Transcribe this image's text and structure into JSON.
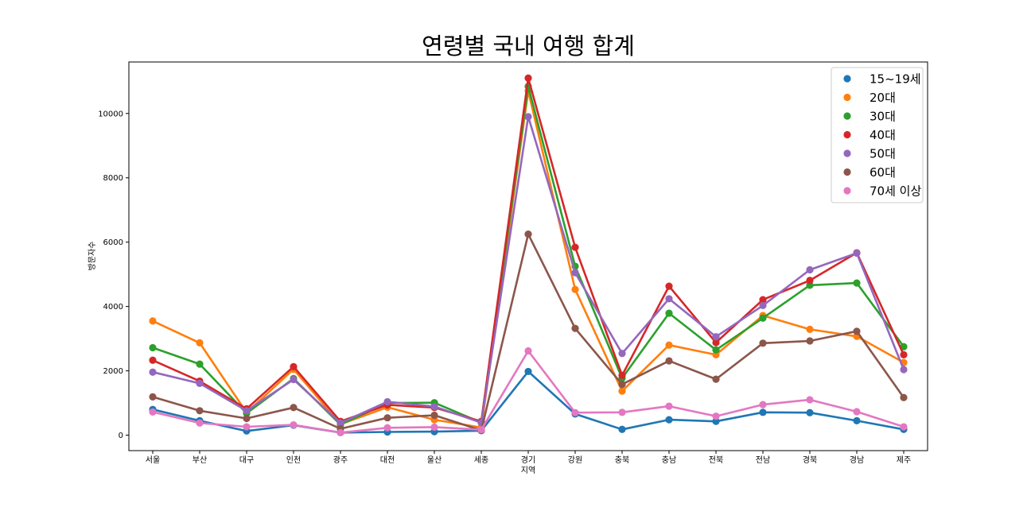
{
  "chart_data": {
    "type": "line",
    "title": "연령별 국내 여행 합계",
    "xlabel": "지역",
    "ylabel": "방문자수",
    "categories": [
      "서울",
      "부산",
      "대구",
      "인천",
      "광주",
      "대전",
      "울산",
      "세종",
      "경기",
      "강원",
      "충북",
      "충남",
      "전북",
      "전남",
      "경북",
      "경남",
      "제주"
    ],
    "ylim": [
      -480,
      11600
    ],
    "yticks": [
      0,
      2000,
      4000,
      6000,
      8000,
      10000
    ],
    "grid": false,
    "legend_position": "upper right",
    "series": [
      {
        "name": "15~19세",
        "color": "#1f77b4",
        "values": [
          800,
          450,
          130,
          310,
          80,
          100,
          110,
          140,
          1980,
          660,
          180,
          480,
          430,
          710,
          700,
          450,
          180
        ]
      },
      {
        "name": "20대",
        "color": "#ff7f0e",
        "values": [
          3550,
          2870,
          700,
          2050,
          340,
          870,
          480,
          240,
          10700,
          4530,
          1370,
          2800,
          2500,
          3720,
          3290,
          3070,
          2260
        ]
      },
      {
        "name": "30대",
        "color": "#2ca02c",
        "values": [
          2720,
          2210,
          680,
          1760,
          330,
          1000,
          1010,
          390,
          10840,
          5250,
          1770,
          3790,
          2650,
          3640,
          4660,
          4730,
          2750
        ]
      },
      {
        "name": "40대",
        "color": "#d62728",
        "values": [
          2330,
          1680,
          820,
          2130,
          430,
          940,
          860,
          430,
          11100,
          5840,
          1860,
          4630,
          2880,
          4210,
          4810,
          5670,
          2500
        ]
      },
      {
        "name": "50대",
        "color": "#9467bd",
        "values": [
          1960,
          1610,
          760,
          1730,
          380,
          1040,
          890,
          390,
          9900,
          5050,
          2540,
          4240,
          3060,
          4030,
          5140,
          5660,
          2040
        ]
      },
      {
        "name": "60대",
        "color": "#8c564b",
        "values": [
          1190,
          760,
          520,
          860,
          200,
          540,
          620,
          150,
          6250,
          3320,
          1580,
          2310,
          1740,
          2860,
          2930,
          3230,
          1170
        ]
      },
      {
        "name": "70세 이상",
        "color": "#e377c2",
        "values": [
          720,
          380,
          260,
          320,
          80,
          230,
          250,
          170,
          2620,
          700,
          710,
          900,
          590,
          950,
          1100,
          730,
          260
        ]
      }
    ]
  }
}
